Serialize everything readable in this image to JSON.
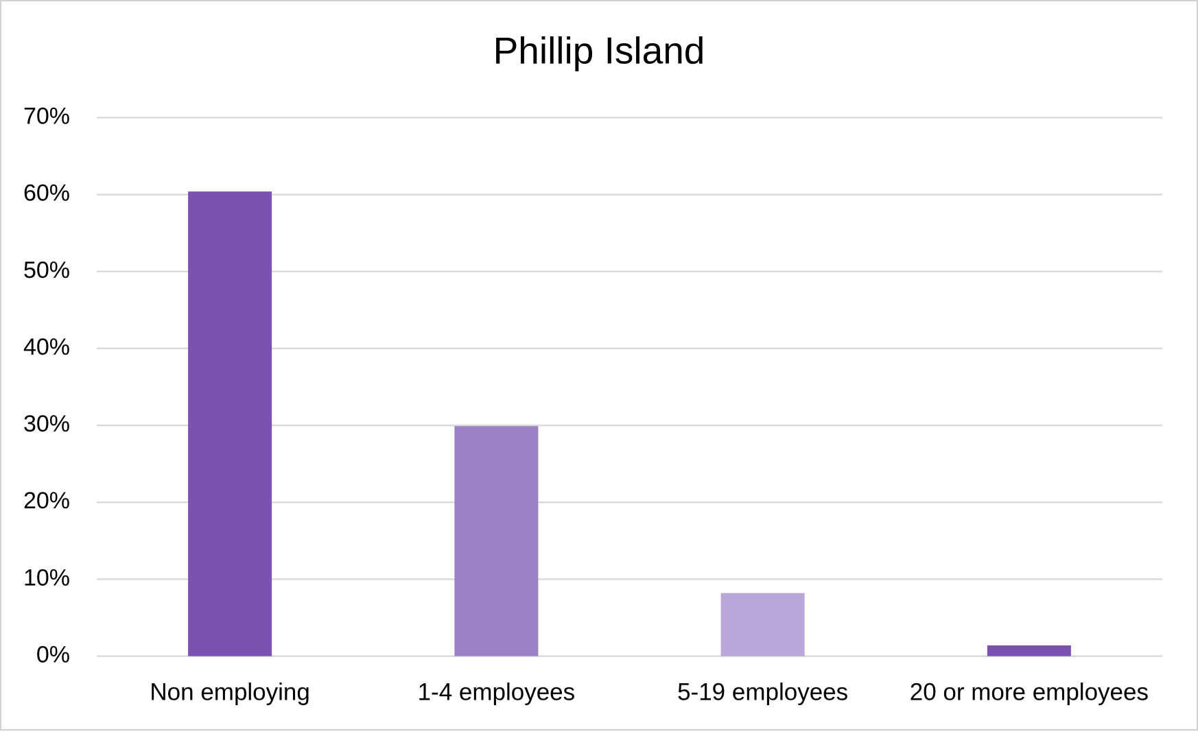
{
  "chart_data": {
    "type": "bar",
    "title": "Phillip Island",
    "categories": [
      "Non employing",
      "1-4 employees",
      "5-19 employees",
      "20 or more employees"
    ],
    "values": [
      60.4,
      29.9,
      8.2,
      1.4
    ],
    "colors": [
      "#7b52b0",
      "#9b7fc7",
      "#baa6d8",
      "#7b52b0"
    ],
    "ylim": [
      0,
      70
    ],
    "yticks": [
      {
        "value": 0,
        "label": "0%"
      },
      {
        "value": 10,
        "label": "10%"
      },
      {
        "value": 20,
        "label": "20%"
      },
      {
        "value": 30,
        "label": "30%"
      },
      {
        "value": 40,
        "label": "40%"
      },
      {
        "value": 50,
        "label": "50%"
      },
      {
        "value": 60,
        "label": "60%"
      },
      {
        "value": 70,
        "label": "70%"
      }
    ],
    "grid": true
  }
}
